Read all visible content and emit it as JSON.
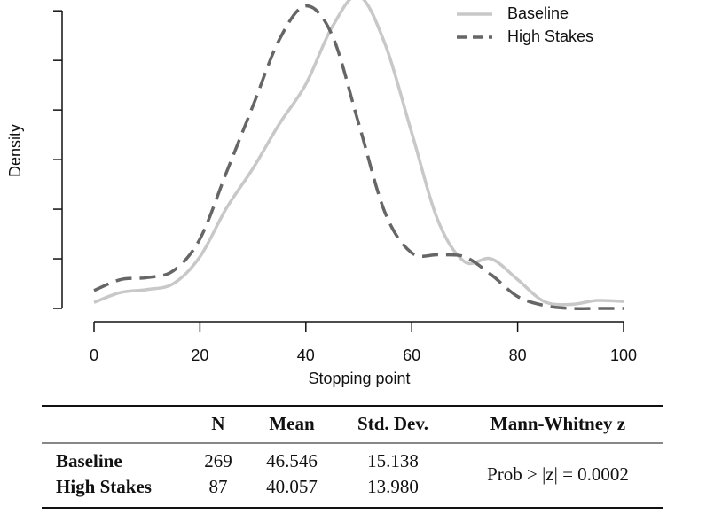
{
  "chart_data": {
    "type": "line",
    "x_label": "Stopping point",
    "y_label": "Density",
    "x": [
      0,
      5,
      10,
      15,
      20,
      25,
      30,
      35,
      40,
      45,
      50,
      55,
      60,
      65,
      70,
      75,
      80,
      85,
      90,
      95,
      100
    ],
    "series": [
      {
        "name": "Baseline",
        "color": "#c8c8c8",
        "dash": "solid",
        "values": [
          0.0006,
          0.0016,
          0.0019,
          0.0025,
          0.0052,
          0.0101,
          0.0141,
          0.0186,
          0.0226,
          0.0284,
          0.0315,
          0.0266,
          0.0177,
          0.0088,
          0.0047,
          0.005,
          0.0029,
          0.0007,
          0.0004,
          0.0008,
          0.0007
        ]
      },
      {
        "name": "High Stakes",
        "color": "#666666",
        "dash": "dashed",
        "values": [
          0.0018,
          0.0029,
          0.0031,
          0.0038,
          0.007,
          0.0137,
          0.0204,
          0.0271,
          0.0305,
          0.0275,
          0.0186,
          0.0096,
          0.0056,
          0.0054,
          0.0052,
          0.0034,
          0.0012,
          0.0003,
          0,
          0,
          0
        ]
      }
    ],
    "xlim": [
      0,
      100
    ],
    "xticks": [
      0,
      20,
      40,
      60,
      80,
      100
    ],
    "ylim": [
      0,
      0.031
    ],
    "yticks": [
      0,
      0.005,
      0.01,
      0.015,
      0.02,
      0.025,
      0.03
    ],
    "legend": "top-right"
  },
  "table": {
    "headers": [
      "N",
      "Mean",
      "Std. Dev.",
      "Mann-Whitney z"
    ],
    "rows": [
      [
        "Baseline",
        "269",
        "46.546",
        "15.138"
      ],
      [
        "High Stakes",
        "87",
        "40.057",
        "13.980"
      ]
    ],
    "test_result": "Prob > |z| = 0.0002"
  }
}
